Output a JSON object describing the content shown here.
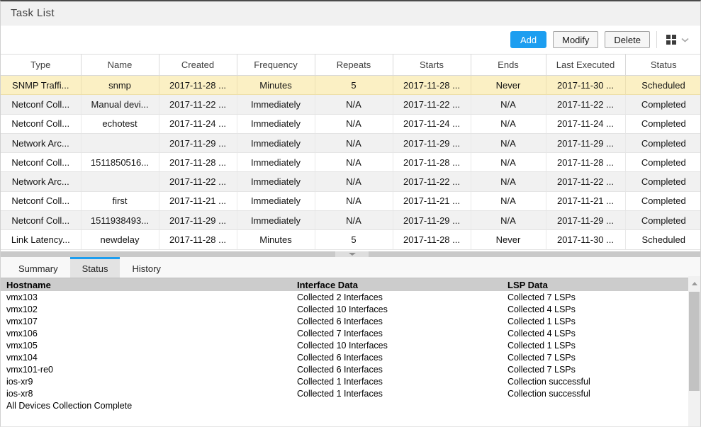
{
  "panel": {
    "title": "Task List"
  },
  "toolbar": {
    "add_label": "Add",
    "modify_label": "Modify",
    "delete_label": "Delete",
    "layout_button_icon": "grid-icon",
    "layout_button_chevron": "chevron-down-icon"
  },
  "task_table": {
    "columns": [
      "Type",
      "Name",
      "Created",
      "Frequency",
      "Repeats",
      "Starts",
      "Ends",
      "Last Executed",
      "Status"
    ],
    "rows": [
      {
        "selected": true,
        "cells": [
          "SNMP Traffi...",
          "snmp",
          "2017-11-28 ...",
          "Minutes",
          "5",
          "2017-11-28 ...",
          "Never",
          "2017-11-30 ...",
          "Scheduled"
        ]
      },
      {
        "selected": false,
        "cells": [
          "Netconf Coll...",
          "Manual devi...",
          "2017-11-22 ...",
          "Immediately",
          "N/A",
          "2017-11-22 ...",
          "N/A",
          "2017-11-22 ...",
          "Completed"
        ]
      },
      {
        "selected": false,
        "cells": [
          "Netconf Coll...",
          "echotest",
          "2017-11-24 ...",
          "Immediately",
          "N/A",
          "2017-11-24 ...",
          "N/A",
          "2017-11-24 ...",
          "Completed"
        ]
      },
      {
        "selected": false,
        "cells": [
          "Network Arc...",
          "",
          "2017-11-29 ...",
          "Immediately",
          "N/A",
          "2017-11-29 ...",
          "N/A",
          "2017-11-29 ...",
          "Completed"
        ]
      },
      {
        "selected": false,
        "cells": [
          "Netconf Coll...",
          "1511850516...",
          "2017-11-28 ...",
          "Immediately",
          "N/A",
          "2017-11-28 ...",
          "N/A",
          "2017-11-28 ...",
          "Completed"
        ]
      },
      {
        "selected": false,
        "cells": [
          "Network Arc...",
          "",
          "2017-11-22 ...",
          "Immediately",
          "N/A",
          "2017-11-22 ...",
          "N/A",
          "2017-11-22 ...",
          "Completed"
        ]
      },
      {
        "selected": false,
        "cells": [
          "Netconf Coll...",
          "first",
          "2017-11-21 ...",
          "Immediately",
          "N/A",
          "2017-11-21 ...",
          "N/A",
          "2017-11-21 ...",
          "Completed"
        ]
      },
      {
        "selected": false,
        "cells": [
          "Netconf Coll...",
          "1511938493...",
          "2017-11-29 ...",
          "Immediately",
          "N/A",
          "2017-11-29 ...",
          "N/A",
          "2017-11-29 ...",
          "Completed"
        ]
      },
      {
        "selected": false,
        "cells": [
          "Link Latency...",
          "newdelay",
          "2017-11-28 ...",
          "Minutes",
          "5",
          "2017-11-28 ...",
          "Never",
          "2017-11-30 ...",
          "Scheduled"
        ]
      }
    ]
  },
  "splitter": {
    "collapse_icon": "chevron-down-icon"
  },
  "tabs": [
    {
      "label": "Summary",
      "active": false
    },
    {
      "label": "Status",
      "active": true
    },
    {
      "label": "History",
      "active": false
    }
  ],
  "status_table": {
    "columns": [
      "Hostname",
      "Interface Data",
      "LSP Data"
    ],
    "rows": [
      [
        "vmx103",
        "Collected 2 Interfaces",
        "Collected 7 LSPs"
      ],
      [
        "vmx102",
        "Collected 10 Interfaces",
        "Collected 4 LSPs"
      ],
      [
        "vmx107",
        "Collected 6 Interfaces",
        "Collected 1 LSPs"
      ],
      [
        "vmx106",
        "Collected 7 Interfaces",
        "Collected 4 LSPs"
      ],
      [
        "vmx105",
        "Collected 10 Interfaces",
        "Collected 1 LSPs"
      ],
      [
        "vmx104",
        "Collected 6 Interfaces",
        "Collected 7 LSPs"
      ],
      [
        "vmx101-re0",
        "Collected 6 Interfaces",
        "Collected 7 LSPs"
      ],
      [
        "ios-xr9",
        "Collected 1 Interfaces",
        "Collection successful"
      ],
      [
        "ios-xr8",
        "Collected 1 Interfaces",
        "Collection successful"
      ]
    ],
    "footer": "All Devices Collection Complete"
  },
  "scrollbar": {
    "up_icon": "triangle-up-icon"
  },
  "colors": {
    "accent_blue": "#1d9ef0",
    "selected_row_yellow": "#fbf0c4",
    "alt_row_gray": "#f1f1f1",
    "status_header_gray": "#cccccc"
  }
}
